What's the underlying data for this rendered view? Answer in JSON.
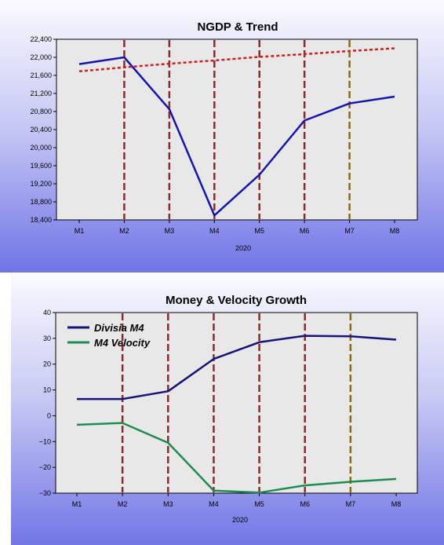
{
  "charts": [
    {
      "title": "NGDP & Trend",
      "xlabel": "2020",
      "categories": [
        "M1",
        "M2",
        "M3",
        "M4",
        "M5",
        "M6",
        "M7",
        "M8"
      ],
      "ylim": [
        18400,
        22400
      ],
      "yticks": [
        "18,400",
        "18,800",
        "19,200",
        "19,600",
        "20,000",
        "20,400",
        "20,800",
        "21,200",
        "21,600",
        "22,000",
        "22,400"
      ],
      "vlines": [
        {
          "x": "M2",
          "color": "#8b2a2a"
        },
        {
          "x": "M3",
          "color": "#8b2a2a"
        },
        {
          "x": "M4",
          "color": "#8b2a2a"
        },
        {
          "x": "M5",
          "color": "#8b2a2a"
        },
        {
          "x": "M6",
          "color": "#8b2a2a"
        },
        {
          "x": "M7",
          "color": "#8b6914"
        }
      ],
      "series": [
        {
          "values": [
            21850,
            22000,
            20850,
            18500,
            19400,
            20600,
            20980,
            21130
          ],
          "color": "#1414b4",
          "dash": ""
        },
        {
          "values": [
            21690,
            21780,
            21860,
            21930,
            22010,
            22070,
            22140,
            22200
          ],
          "color": "#d21e1e",
          "dash": "4,3"
        }
      ],
      "legend": []
    },
    {
      "title": "Money & Velocity Growth",
      "xlabel": "2020",
      "categories": [
        "M1",
        "M2",
        "M3",
        "M4",
        "M5",
        "M6",
        "M7",
        "M8"
      ],
      "ylim": [
        -30,
        40
      ],
      "yticks": [
        "−30",
        "−20",
        "−10",
        "0",
        "10",
        "20",
        "30",
        "40"
      ],
      "vlines": [
        {
          "x": "M2",
          "color": "#8b2a2a"
        },
        {
          "x": "M3",
          "color": "#8b2a2a"
        },
        {
          "x": "M4",
          "color": "#8b2a2a"
        },
        {
          "x": "M5",
          "color": "#8b2a2a"
        },
        {
          "x": "M6",
          "color": "#8b2a2a"
        },
        {
          "x": "M7",
          "color": "#8b6914"
        }
      ],
      "series": [
        {
          "name": "Divisia M4",
          "values": [
            6.5,
            6.5,
            9.5,
            22,
            28.5,
            31,
            30.8,
            29.5
          ],
          "color": "#14147a",
          "dash": ""
        },
        {
          "name": "M4 Velocity",
          "values": [
            -3.5,
            -2.8,
            -10.5,
            -29,
            -29.8,
            -27,
            -25.6,
            -24.5
          ],
          "color": "#1e8c4e",
          "dash": ""
        }
      ],
      "legend": [
        "Divisia M4",
        "M4 Velocity"
      ]
    }
  ],
  "chart_data": [
    {
      "type": "line",
      "title": "NGDP & Trend",
      "xlabel": "2020",
      "ylabel": "",
      "categories": [
        "M1",
        "M2",
        "M3",
        "M4",
        "M5",
        "M6",
        "M7",
        "M8"
      ],
      "ylim": [
        18400,
        22400
      ],
      "series": [
        {
          "values": [
            21850,
            22000,
            20850,
            18500,
            19400,
            20600,
            20980,
            21130
          ]
        },
        {
          "values": [
            21690,
            21780,
            21860,
            21930,
            22010,
            22070,
            22140,
            22200
          ]
        }
      ],
      "grid": false,
      "legend": "none"
    },
    {
      "type": "line",
      "title": "Money & Velocity Growth",
      "xlabel": "2020",
      "ylabel": "",
      "categories": [
        "M1",
        "M2",
        "M3",
        "M4",
        "M5",
        "M6",
        "M7",
        "M8"
      ],
      "ylim": [
        -30,
        40
      ],
      "series": [
        {
          "name": "Divisia M4",
          "values": [
            6.5,
            6.5,
            9.5,
            22,
            28.5,
            31,
            30.8,
            29.5
          ]
        },
        {
          "name": "M4 Velocity",
          "values": [
            -3.5,
            -2.8,
            -10.5,
            -29,
            -29.8,
            -27,
            -25.6,
            -24.5
          ]
        }
      ],
      "grid": false,
      "legend": "top-left"
    }
  ]
}
